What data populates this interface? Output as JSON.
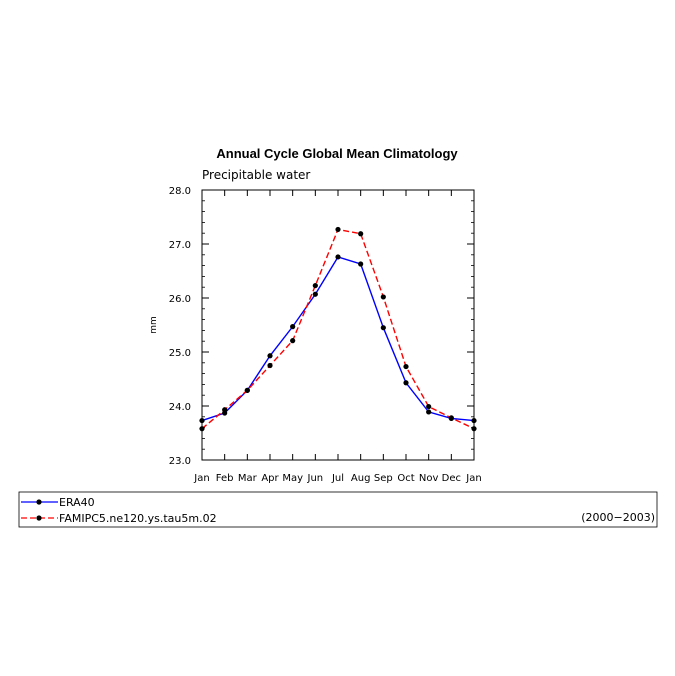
{
  "chart_data": {
    "type": "line",
    "title": "Annual Cycle Global Mean Climatology",
    "subtitle": "Precipitable water",
    "ylabel": "mm",
    "xlabel": "",
    "categories": [
      "Jan",
      "Feb",
      "Mar",
      "Apr",
      "May",
      "Jun",
      "Jul",
      "Aug",
      "Sep",
      "Oct",
      "Nov",
      "Dec",
      "Jan"
    ],
    "ylim": [
      23.0,
      28.0
    ],
    "yticks": [
      "23.0",
      "24.0",
      "25.0",
      "26.0",
      "27.0",
      "28.0"
    ],
    "grid": false,
    "legend_position": "bottom",
    "period_label": "(2000−2003)",
    "series": [
      {
        "name": "ERA40",
        "color": "#0000ff",
        "dash": "solid",
        "values": [
          23.73,
          23.87,
          24.29,
          24.93,
          25.47,
          26.07,
          26.76,
          26.63,
          25.45,
          24.43,
          23.89,
          23.77,
          23.73
        ]
      },
      {
        "name": "FAMIPC5.ne120.ys.tau5m.02",
        "color": "#ff0000",
        "dash": "dashed",
        "values": [
          23.58,
          23.93,
          24.29,
          24.75,
          25.21,
          26.23,
          27.27,
          27.19,
          26.02,
          24.73,
          23.99,
          23.78,
          23.58
        ]
      }
    ]
  }
}
